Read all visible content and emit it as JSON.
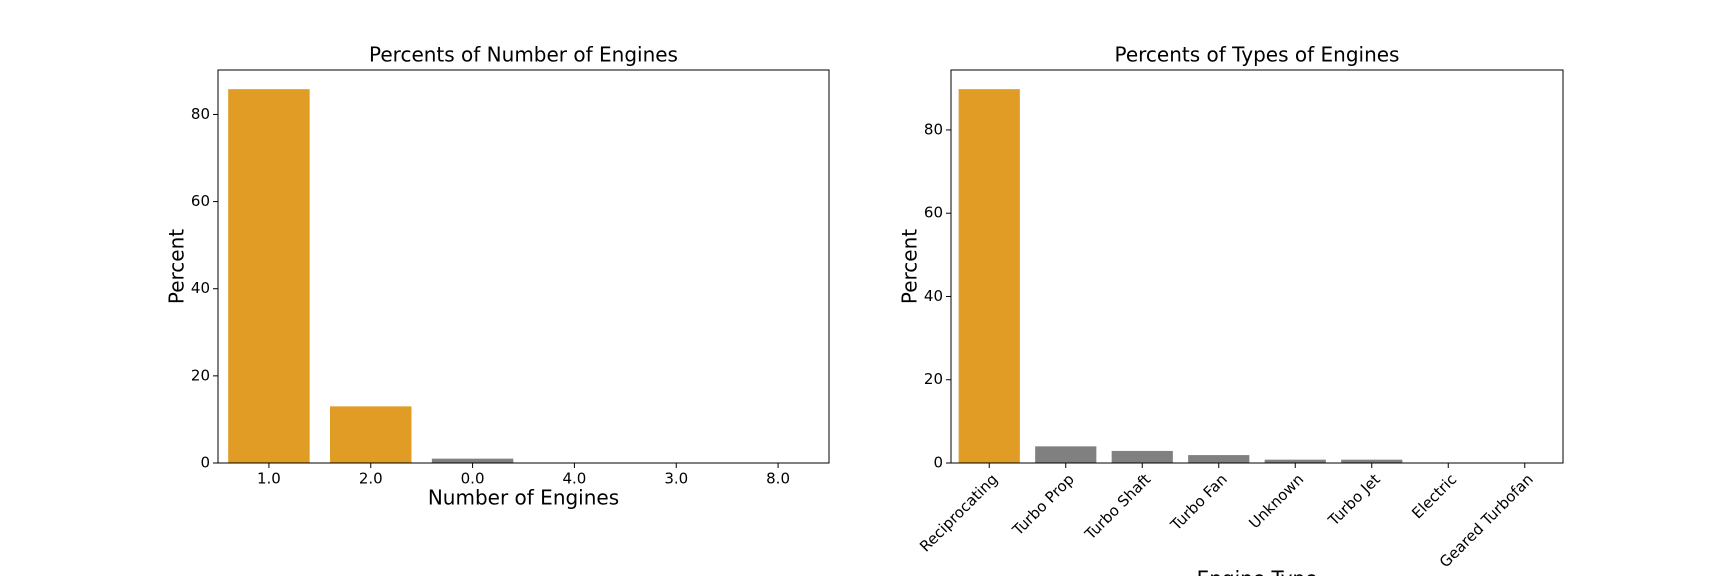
{
  "chart_data": [
    {
      "type": "bar",
      "title": "Percents of Number of Engines",
      "xlabel": "Number of Engines",
      "ylabel": "Percent",
      "categories": [
        "1.0",
        "2.0",
        "0.0",
        "4.0",
        "3.0",
        "8.0"
      ],
      "values": [
        85.8,
        13.0,
        1.0,
        0.1,
        0.05,
        0.01
      ],
      "colors": [
        "#e09c24",
        "#e09c24",
        "#808080",
        "#808080",
        "#808080",
        "#808080"
      ],
      "ylim": [
        0,
        90.2
      ],
      "yticks": [
        0,
        20,
        40,
        60,
        80
      ],
      "xtick_rotation": 0
    },
    {
      "type": "bar",
      "title": "Percents of Types of Engines",
      "xlabel": "Engine Type",
      "ylabel": "Percent",
      "categories": [
        "Reciprocating",
        "Turbo Prop",
        "Turbo Shaft",
        "Turbo Fan",
        "Unknown",
        "Turbo Jet",
        "Electric",
        "Geared Turbofan"
      ],
      "values": [
        89.8,
        4.0,
        2.9,
        1.9,
        0.8,
        0.8,
        0.05,
        0.01
      ],
      "colors": [
        "#e09c24",
        "#808080",
        "#808080",
        "#808080",
        "#808080",
        "#808080",
        "#808080",
        "#808080"
      ],
      "ylim": [
        0,
        94.4
      ],
      "yticks": [
        0,
        20,
        40,
        60,
        80
      ],
      "xtick_rotation": 45
    }
  ]
}
